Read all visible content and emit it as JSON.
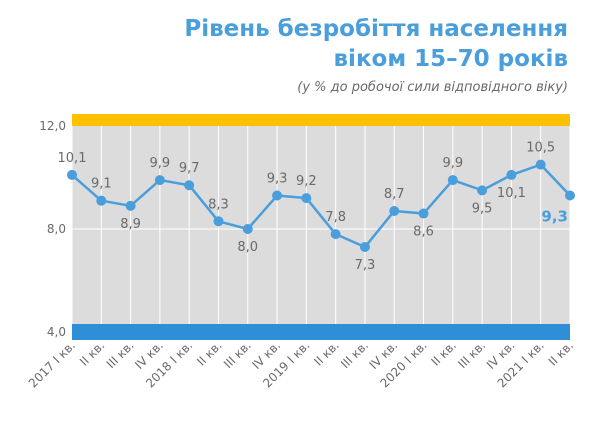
{
  "title_lines": [
    "Рівень безробіття населення",
    "віком 15–70 років"
  ],
  "subtitle": "(у % до робочої сили відповідного віку)",
  "colors": {
    "title": "#4a9edb",
    "line": "#4a9edb",
    "plot_background": "#dcdcdc",
    "top_band": "#ffc000",
    "bottom_band": "#2e8fd8",
    "grid": "#ffffff",
    "label": "#6a6a6a",
    "last_label": "#4a9edb"
  },
  "chart_data": {
    "type": "line",
    "categories": [
      "2017 I кв.",
      "II кв.",
      "III кв.",
      "IV кв.",
      "2018 I кв.",
      "II кв.",
      "III кв.",
      "IV кв.",
      "2019 I кв.",
      "II кв.",
      "III кв.",
      "IV кв.",
      "2020 I кв.",
      "II кв.",
      "III кв.",
      "IV кв.",
      "2021 I кв.",
      "II кв."
    ],
    "series": [
      {
        "values": [
          10.1,
          9.1,
          8.9,
          9.9,
          9.7,
          8.3,
          8.0,
          9.3,
          9.2,
          7.8,
          7.3,
          8.7,
          8.6,
          9.9,
          9.5,
          10.1,
          10.5,
          9.3
        ],
        "labels": [
          "10,1",
          "9,1",
          "8,9",
          "9,9",
          "9,7",
          "8,3",
          "8,0",
          "9,3",
          "9,2",
          "7,8",
          "7,3",
          "8,7",
          "8,6",
          "9,9",
          "9,5",
          "10,1",
          "10,5",
          "9,3"
        ]
      }
    ],
    "y_ticks": [
      {
        "value": 4.0,
        "label": "4,0"
      },
      {
        "value": 8.0,
        "label": "8,0"
      },
      {
        "value": 12.0,
        "label": "12,0"
      }
    ],
    "ylim": [
      4.0,
      12.0
    ],
    "grid": true,
    "legend": "none"
  }
}
